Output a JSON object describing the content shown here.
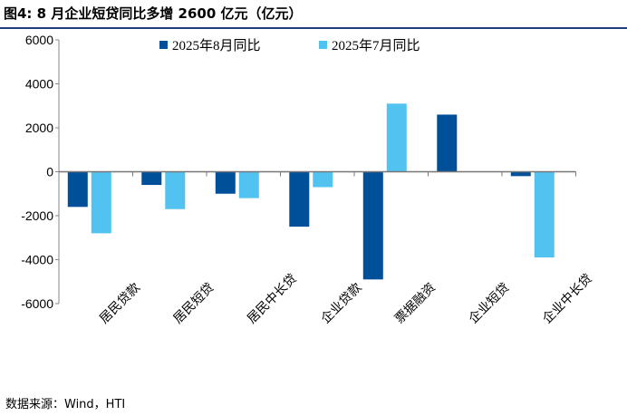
{
  "title": "图4:  8 月企业短贷同比多增 2600 亿元（亿元）",
  "source": "数据来源：Wind，HTI",
  "chart_data": {
    "type": "bar",
    "title": "8 月企业短贷同比多增 2600 亿元（亿元）",
    "categories": [
      "居民贷款",
      "居民短贷",
      "居民中长贷",
      "企业贷款",
      "票据融资",
      "企业短贷",
      "企业中长贷"
    ],
    "series": [
      {
        "name": "2025年8月同比",
        "color": "#004F99",
        "values": [
          -1600,
          -600,
          -1000,
          -2500,
          -4900,
          2600,
          -200
        ]
      },
      {
        "name": "2025年7月同比",
        "color": "#52C2F0",
        "values": [
          -2800,
          -1700,
          -1200,
          -700,
          3100,
          null,
          -3900
        ]
      }
    ],
    "ylim": [
      -6000,
      6000
    ],
    "yticks": [
      6000,
      4000,
      2000,
      0,
      -2000,
      -4000,
      -6000
    ],
    "legend": "top",
    "grid": false
  }
}
